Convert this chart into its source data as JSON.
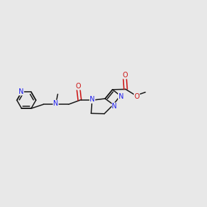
{
  "bg_color": "#e8e8e8",
  "bond_color": "#1a1a1a",
  "n_color": "#1a1aee",
  "o_color": "#cc1111",
  "font_size": 7.0,
  "lw": 1.15,
  "figsize": [
    3.0,
    3.0
  ],
  "dpi": 100,
  "xlim": [
    -1.0,
    11.5
  ],
  "ylim": [
    2.5,
    9.5
  ]
}
